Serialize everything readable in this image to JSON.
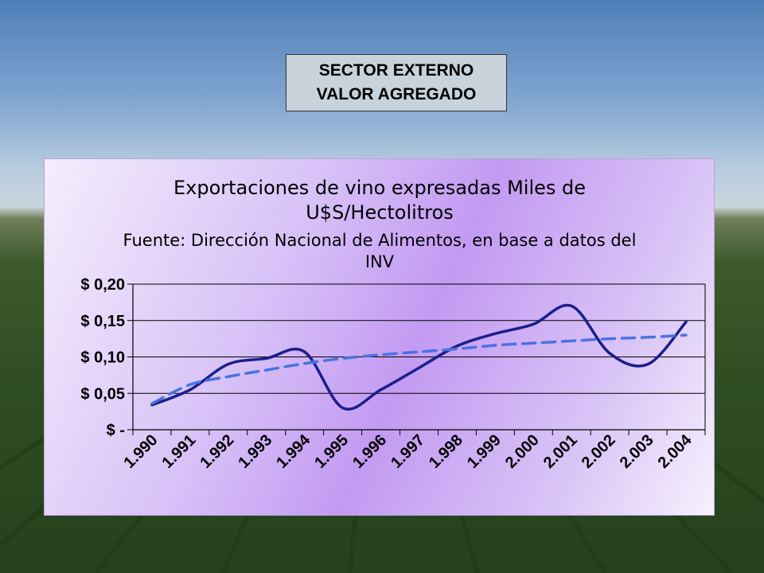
{
  "slide": {
    "heading_line1": "SECTOR EXTERNO",
    "heading_line2": "VALOR AGREGADO"
  },
  "chart_data": {
    "type": "line",
    "title_lines": [
      "Exportaciones de vino expresadas Miles de",
      "U$S/Hectolitros",
      "Fuente: Dirección Nacional de Alimentos, en base a datos del",
      "INV"
    ],
    "xlabel": "",
    "ylabel": "",
    "categories": [
      "1.990",
      "1.991",
      "1.992",
      "1.993",
      "1.994",
      "1.995",
      "1.996",
      "1.997",
      "1.998",
      "1.999",
      "2.000",
      "2.001",
      "2.002",
      "2.003",
      "2.004"
    ],
    "ylim": [
      0,
      0.2
    ],
    "yticks": [
      0,
      0.05,
      0.1,
      0.15,
      0.2
    ],
    "ytick_labels": [
      "$ -",
      "$ 0,05",
      "$ 0,10",
      "$ 0,15",
      "$ 0,20"
    ],
    "grid": true,
    "legend": "none",
    "series": [
      {
        "style": "solid",
        "color": "#1a1f8c",
        "values": [
          0.034,
          0.055,
          0.09,
          0.098,
          0.107,
          0.03,
          0.055,
          0.085,
          0.115,
          0.132,
          0.145,
          0.17,
          0.105,
          0.09,
          0.148
        ]
      },
      {
        "style": "dashed-trend",
        "color": "#4a72e0",
        "values": [
          0.036,
          0.062,
          0.073,
          0.082,
          0.091,
          0.098,
          0.103,
          0.107,
          0.111,
          0.116,
          0.119,
          0.122,
          0.125,
          0.127,
          0.13
        ]
      }
    ]
  }
}
